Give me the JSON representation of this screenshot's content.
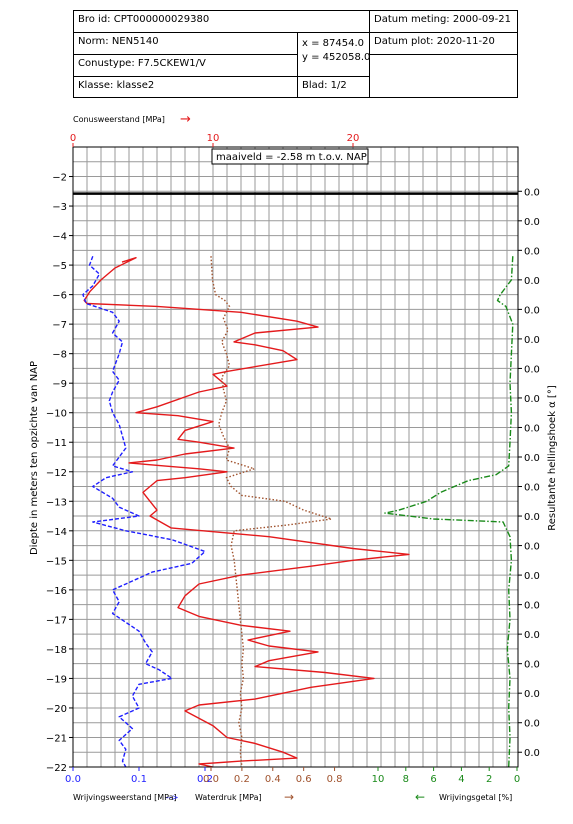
{
  "header": {
    "bro_id": "Bro id: CPT000000029380",
    "datum_meting": "Datum meting: 2000-09-21",
    "norm": "Norm: NEN5140",
    "x_coord": "x = 87454.0",
    "y_coord": "y = 452058.0",
    "datum_plot": "Datum plot: 2020-11-20",
    "conustype": "Conustype: F7.5CKEW1/V",
    "klasse": "Klasse: klasse2",
    "blad": "Blad: 1/2"
  },
  "labels": {
    "top_axis_title": "Conusweerstand [MPa]",
    "top_arrow": "→",
    "maaiveld": "maaiveld = -2.58   m t.o.v. NAP",
    "left_axis_title": "Diepte in meters ten opzichte van NAP",
    "right_axis_title": "Resultante hellingshoek α [°]",
    "bottom_left_title": "Wrijvingsweerstand [MPa]",
    "bottom_left_arrow": "-->",
    "bottom_mid_title": "Waterdruk [MPa]",
    "bottom_mid_arrow": "→",
    "bottom_right_arrow": "←",
    "bottom_right_title": "Wrijvingsgetal [%]"
  },
  "colors": {
    "conus": "#e41a1c",
    "wrijving": "#1f1fff",
    "waterdruk": "#a0522d",
    "wrijvingsgetal": "#1a8a1a"
  },
  "chart_data": {
    "type": "line",
    "y_axis": {
      "label": "Diepte in meters ten opzichte van NAP",
      "ylim": [
        -22,
        -1
      ],
      "ticks": [
        -2,
        -3,
        -4,
        -5,
        -6,
        -7,
        -8,
        -9,
        -10,
        -11,
        -12,
        -13,
        -14,
        -15,
        -16,
        -17,
        -18,
        -19,
        -20,
        -21,
        -22
      ]
    },
    "top_axis": {
      "label": "Conusweerstand [MPa]",
      "xlim": [
        0,
        30
      ],
      "ticks": [
        0,
        10,
        20
      ]
    },
    "bottom_axes": [
      {
        "label": "Wrijvingsweerstand [MPa]",
        "xlim": [
          0,
          0.25
        ],
        "ticks": [
          0.0,
          0.1,
          0.2
        ]
      },
      {
        "label": "Waterdruk [MPa]",
        "xlim": [
          0,
          0.9
        ],
        "ticks": [
          0.0,
          0.2,
          0.4,
          0.6,
          0.8
        ]
      },
      {
        "label": "Wrijvingsgetal [%]",
        "xlim": [
          10,
          0
        ],
        "ticks": [
          10,
          8,
          6,
          4,
          2,
          0
        ]
      }
    ],
    "right_axis": {
      "label": "Resultante hellingshoek α [°]",
      "tick_labels": [
        "0.0",
        "0.0",
        "0.0",
        "0.0",
        "0.0",
        "0.0",
        "0.0",
        "0.0",
        "0.0",
        "0.0",
        "0.0",
        "0.0",
        "0.0",
        "0.0",
        "0.0",
        "0.0",
        "0.0",
        "0.0",
        "0.0",
        "0.0"
      ]
    },
    "maaiveld": -2.58,
    "series": [
      {
        "name": "Conusweerstand",
        "axis": "top",
        "style": "solid",
        "points": [
          [
            3.5,
            -4.9
          ],
          [
            4.5,
            -4.75
          ],
          [
            3,
            -5.1
          ],
          [
            2,
            -5.5
          ],
          [
            1.2,
            -5.9
          ],
          [
            0.8,
            -6.2
          ],
          [
            1,
            -6.3
          ],
          [
            6,
            -6.4
          ],
          [
            12,
            -6.6
          ],
          [
            16,
            -6.9
          ],
          [
            17.5,
            -7.1
          ],
          [
            13,
            -7.3
          ],
          [
            11.5,
            -7.6
          ],
          [
            13,
            -7.7
          ],
          [
            15,
            -7.9
          ],
          [
            16,
            -8.2
          ],
          [
            11,
            -8.6
          ],
          [
            10,
            -8.7
          ],
          [
            11,
            -9.1
          ],
          [
            9,
            -9.3
          ],
          [
            6,
            -9.8
          ],
          [
            4.5,
            -10.0
          ],
          [
            7.5,
            -10.1
          ],
          [
            10,
            -10.3
          ],
          [
            8,
            -10.6
          ],
          [
            7.5,
            -10.9
          ],
          [
            9,
            -11.0
          ],
          [
            11.5,
            -11.2
          ],
          [
            8,
            -11.4
          ],
          [
            6,
            -11.6
          ],
          [
            4,
            -11.7
          ],
          [
            6.5,
            -11.8
          ],
          [
            9,
            -11.9
          ],
          [
            11,
            -12.0
          ],
          [
            8,
            -12.2
          ],
          [
            6,
            -12.3
          ],
          [
            5,
            -12.7
          ],
          [
            5.5,
            -13.0
          ],
          [
            6,
            -13.3
          ],
          [
            5.5,
            -13.5
          ],
          [
            7,
            -13.9
          ],
          [
            14,
            -14.2
          ],
          [
            20,
            -14.6
          ],
          [
            24,
            -14.8
          ],
          [
            20,
            -15.0
          ],
          [
            17,
            -15.2
          ],
          [
            12,
            -15.5
          ],
          [
            9,
            -15.8
          ],
          [
            8,
            -16.2
          ],
          [
            7.5,
            -16.6
          ],
          [
            9,
            -16.9
          ],
          [
            12,
            -17.2
          ],
          [
            15.5,
            -17.4
          ],
          [
            12.5,
            -17.7
          ],
          [
            14,
            -17.9
          ],
          [
            17.5,
            -18.1
          ],
          [
            14,
            -18.4
          ],
          [
            13,
            -18.6
          ],
          [
            18,
            -18.8
          ],
          [
            21.5,
            -19.0
          ],
          [
            17,
            -19.3
          ],
          [
            13,
            -19.7
          ],
          [
            9,
            -19.9
          ],
          [
            8,
            -20.1
          ],
          [
            10,
            -20.6
          ],
          [
            11,
            -21.0
          ],
          [
            13,
            -21.2
          ],
          [
            15,
            -21.5
          ],
          [
            16,
            -21.7
          ],
          [
            12,
            -21.8
          ],
          [
            9,
            -21.9
          ],
          [
            10,
            -22.0
          ]
        ]
      },
      {
        "name": "Wrijvingsweerstand",
        "axis": "bottom0",
        "style": "dashed",
        "points": [
          [
            0.03,
            -4.7
          ],
          [
            0.025,
            -5.0
          ],
          [
            0.04,
            -5.3
          ],
          [
            0.03,
            -5.7
          ],
          [
            0.015,
            -6.0
          ],
          [
            0.02,
            -6.3
          ],
          [
            0.06,
            -6.6
          ],
          [
            0.07,
            -6.9
          ],
          [
            0.06,
            -7.3
          ],
          [
            0.075,
            -7.6
          ],
          [
            0.07,
            -8.0
          ],
          [
            0.065,
            -8.3
          ],
          [
            0.06,
            -8.6
          ],
          [
            0.07,
            -8.9
          ],
          [
            0.06,
            -9.3
          ],
          [
            0.055,
            -9.6
          ],
          [
            0.06,
            -10.0
          ],
          [
            0.07,
            -10.4
          ],
          [
            0.075,
            -10.8
          ],
          [
            0.08,
            -11.2
          ],
          [
            0.07,
            -11.5
          ],
          [
            0.06,
            -11.8
          ],
          [
            0.09,
            -12.0
          ],
          [
            0.05,
            -12.2
          ],
          [
            0.03,
            -12.5
          ],
          [
            0.06,
            -12.9
          ],
          [
            0.07,
            -13.2
          ],
          [
            0.1,
            -13.5
          ],
          [
            0.03,
            -13.7
          ],
          [
            0.08,
            -14.0
          ],
          [
            0.15,
            -14.3
          ],
          [
            0.2,
            -14.7
          ],
          [
            0.18,
            -15.1
          ],
          [
            0.12,
            -15.4
          ],
          [
            0.09,
            -15.7
          ],
          [
            0.06,
            -16.0
          ],
          [
            0.07,
            -16.4
          ],
          [
            0.06,
            -16.8
          ],
          [
            0.08,
            -17.1
          ],
          [
            0.1,
            -17.4
          ],
          [
            0.11,
            -17.8
          ],
          [
            0.12,
            -18.1
          ],
          [
            0.11,
            -18.5
          ],
          [
            0.13,
            -18.7
          ],
          [
            0.15,
            -19.0
          ],
          [
            0.1,
            -19.2
          ],
          [
            0.09,
            -19.6
          ],
          [
            0.1,
            -20.0
          ],
          [
            0.07,
            -20.3
          ],
          [
            0.09,
            -20.7
          ],
          [
            0.07,
            -21.1
          ],
          [
            0.08,
            -21.4
          ],
          [
            0.075,
            -21.8
          ],
          [
            0.08,
            -22.0
          ]
        ]
      },
      {
        "name": "Waterdruk",
        "axis": "bottom1",
        "style": "dotted",
        "points": [
          [
            0.0,
            -4.7
          ],
          [
            0.01,
            -5.5
          ],
          [
            0.03,
            -6.0
          ],
          [
            0.09,
            -6.2
          ],
          [
            0.12,
            -6.4
          ],
          [
            0.08,
            -6.8
          ],
          [
            0.11,
            -7.2
          ],
          [
            0.07,
            -7.6
          ],
          [
            0.1,
            -8.0
          ],
          [
            0.12,
            -8.4
          ],
          [
            0.07,
            -8.8
          ],
          [
            0.08,
            -9.2
          ],
          [
            0.1,
            -9.6
          ],
          [
            0.07,
            -10.0
          ],
          [
            0.05,
            -10.4
          ],
          [
            0.08,
            -10.8
          ],
          [
            0.12,
            -11.2
          ],
          [
            0.1,
            -11.6
          ],
          [
            0.28,
            -11.9
          ],
          [
            0.1,
            -12.2
          ],
          [
            0.13,
            -12.5
          ],
          [
            0.2,
            -12.8
          ],
          [
            0.48,
            -13.0
          ],
          [
            0.6,
            -13.3
          ],
          [
            0.78,
            -13.6
          ],
          [
            0.5,
            -13.8
          ],
          [
            0.15,
            -14.0
          ],
          [
            0.13,
            -14.5
          ],
          [
            0.15,
            -15.0
          ],
          [
            0.16,
            -15.5
          ],
          [
            0.17,
            -16.0
          ],
          [
            0.18,
            -16.5
          ],
          [
            0.19,
            -17.0
          ],
          [
            0.2,
            -17.5
          ],
          [
            0.21,
            -18.0
          ],
          [
            0.2,
            -18.5
          ],
          [
            0.21,
            -19.0
          ],
          [
            0.19,
            -19.5
          ],
          [
            0.2,
            -20.0
          ],
          [
            0.18,
            -20.5
          ],
          [
            0.2,
            -21.0
          ],
          [
            0.19,
            -21.5
          ],
          [
            0.2,
            -22.0
          ]
        ]
      },
      {
        "name": "Wrijvingsgetal",
        "axis": "bottom2",
        "style": "dashdot",
        "points": [
          [
            0.3,
            -4.7
          ],
          [
            0.4,
            -5.5
          ],
          [
            1.2,
            -6.0
          ],
          [
            1.4,
            -6.2
          ],
          [
            0.8,
            -6.4
          ],
          [
            0.3,
            -7.0
          ],
          [
            0.4,
            -8.0
          ],
          [
            0.5,
            -9.0
          ],
          [
            0.4,
            -10.0
          ],
          [
            0.5,
            -11.0
          ],
          [
            0.6,
            -11.8
          ],
          [
            1.5,
            -12.1
          ],
          [
            3.5,
            -12.3
          ],
          [
            4.5,
            -12.5
          ],
          [
            5.5,
            -12.7
          ],
          [
            6.5,
            -13.0
          ],
          [
            8.5,
            -13.3
          ],
          [
            9.5,
            -13.4
          ],
          [
            6,
            -13.6
          ],
          [
            1,
            -13.7
          ],
          [
            0.5,
            -14.2
          ],
          [
            0.4,
            -15.0
          ],
          [
            0.6,
            -16.0
          ],
          [
            0.5,
            -17.0
          ],
          [
            0.7,
            -18.0
          ],
          [
            0.5,
            -19.0
          ],
          [
            0.6,
            -20.0
          ],
          [
            0.5,
            -21.0
          ],
          [
            0.6,
            -22.0
          ]
        ]
      }
    ]
  }
}
